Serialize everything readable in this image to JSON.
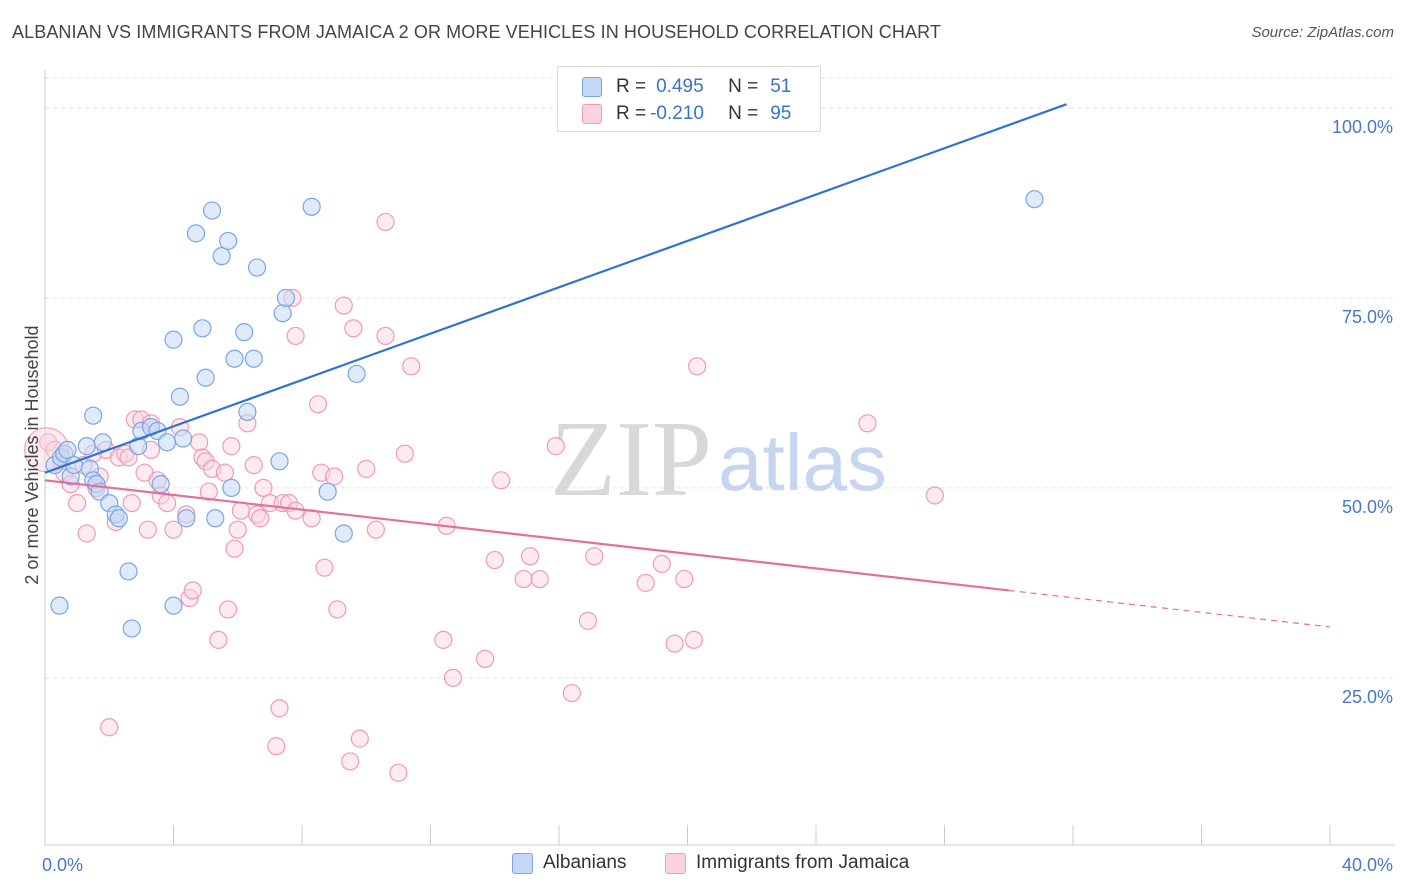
{
  "title": "ALBANIAN VS IMMIGRANTS FROM JAMAICA 2 OR MORE VEHICLES IN HOUSEHOLD CORRELATION CHART",
  "source": "Source: ZipAtlas.com",
  "watermark": {
    "zip": "ZIP",
    "atlas": "atlas"
  },
  "legend": {
    "r_label": "R =",
    "n_label": "N =",
    "rows": [
      {
        "series": "Albanians",
        "r": "0.495",
        "n": "51",
        "color": "#7aa6e8",
        "fill": "#c4d8f5"
      },
      {
        "series": "Immigrants from Jamaica",
        "r": "-0.210",
        "n": "95",
        "color": "#f09ab5",
        "fill": "#fbd3e0"
      }
    ]
  },
  "chart_data": {
    "type": "scatter",
    "title": "ALBANIAN VS IMMIGRANTS FROM JAMAICA 2 OR MORE VEHICLES IN HOUSEHOLD CORRELATION CHART",
    "xlabel": "",
    "ylabel": "2 or more Vehicles in Household",
    "xlim": [
      0,
      40
    ],
    "ylim": [
      3,
      105
    ],
    "x_tick_labels": [
      "0.0%",
      "40.0%"
    ],
    "y_ticks": [
      25,
      50,
      75,
      100
    ],
    "y_tick_labels": [
      "25.0%",
      "50.0%",
      "75.0%",
      "100.0%"
    ],
    "grid": true,
    "legend_position": "top-center",
    "series": [
      {
        "name": "Albanians",
        "color": "#7aa6e8",
        "trend": {
          "x": [
            0.0,
            31.8
          ],
          "y": [
            52.0,
            100.5
          ],
          "dashed_to": null
        },
        "points": [
          [
            0.3,
            53.0
          ],
          [
            0.5,
            54.0
          ],
          [
            0.6,
            54.5
          ],
          [
            0.7,
            55.0
          ],
          [
            0.8,
            51.5
          ],
          [
            0.9,
            53.0
          ],
          [
            1.3,
            55.5
          ],
          [
            1.4,
            52.5
          ],
          [
            1.5,
            51.0
          ],
          [
            1.6,
            50.5
          ],
          [
            1.7,
            49.5
          ],
          [
            1.8,
            56.0
          ],
          [
            1.5,
            59.5
          ],
          [
            2.0,
            48.0
          ],
          [
            2.2,
            46.5
          ],
          [
            2.3,
            46.0
          ],
          [
            2.6,
            39.0
          ],
          [
            2.7,
            31.5
          ],
          [
            2.9,
            55.5
          ],
          [
            3.0,
            57.5
          ],
          [
            3.3,
            58.0
          ],
          [
            3.5,
            57.5
          ],
          [
            3.8,
            56.0
          ],
          [
            3.6,
            50.5
          ],
          [
            4.0,
            69.5
          ],
          [
            4.2,
            62.0
          ],
          [
            4.3,
            56.5
          ],
          [
            4.4,
            46.0
          ],
          [
            4.7,
            83.5
          ],
          [
            4.9,
            71.0
          ],
          [
            5.0,
            64.5
          ],
          [
            5.2,
            86.5
          ],
          [
            5.3,
            46.0
          ],
          [
            5.5,
            80.5
          ],
          [
            5.7,
            82.5
          ],
          [
            5.9,
            67.0
          ],
          [
            6.2,
            70.5
          ],
          [
            6.3,
            60.0
          ],
          [
            6.5,
            67.0
          ],
          [
            6.6,
            79.0
          ],
          [
            7.3,
            53.5
          ],
          [
            7.4,
            73.0
          ],
          [
            7.5,
            75.0
          ],
          [
            8.3,
            87.0
          ],
          [
            8.8,
            49.5
          ],
          [
            9.3,
            44.0
          ],
          [
            9.7,
            65.0
          ],
          [
            30.8,
            88.0
          ],
          [
            0.45,
            34.5
          ],
          [
            4.0,
            34.5
          ],
          [
            5.8,
            50.0
          ]
        ]
      },
      {
        "name": "Immigrants from Jamaica",
        "color": "#f09ab5",
        "trend": {
          "x": [
            0.0,
            30.0
          ],
          "y": [
            51.0,
            36.5
          ],
          "dashed_to": [
            40.0,
            31.7
          ]
        },
        "points": [
          [
            0.1,
            56.0
          ],
          [
            0.3,
            55.0
          ],
          [
            0.5,
            53.5
          ],
          [
            0.6,
            52.0
          ],
          [
            0.8,
            50.5
          ],
          [
            1.0,
            48.0
          ],
          [
            1.2,
            53.0
          ],
          [
            1.3,
            44.0
          ],
          [
            1.5,
            54.5
          ],
          [
            1.6,
            50.0
          ],
          [
            1.7,
            51.5
          ],
          [
            1.9,
            55.0
          ],
          [
            2.2,
            45.5
          ],
          [
            2.3,
            54.0
          ],
          [
            2.5,
            54.5
          ],
          [
            2.6,
            54.0
          ],
          [
            2.7,
            48.0
          ],
          [
            2.8,
            59.0
          ],
          [
            3.0,
            59.0
          ],
          [
            3.1,
            52.0
          ],
          [
            3.2,
            44.5
          ],
          [
            3.3,
            58.5
          ],
          [
            3.5,
            51.0
          ],
          [
            3.6,
            49.0
          ],
          [
            3.8,
            48.0
          ],
          [
            4.0,
            44.5
          ],
          [
            4.2,
            58.0
          ],
          [
            4.4,
            46.5
          ],
          [
            4.5,
            35.5
          ],
          [
            4.6,
            36.5
          ],
          [
            4.8,
            56.0
          ],
          [
            4.9,
            54.0
          ],
          [
            5.0,
            53.5
          ],
          [
            5.1,
            49.5
          ],
          [
            5.2,
            52.5
          ],
          [
            5.4,
            30.0
          ],
          [
            5.6,
            52.0
          ],
          [
            5.7,
            34.0
          ],
          [
            5.8,
            55.5
          ],
          [
            5.9,
            42.0
          ],
          [
            6.0,
            44.5
          ],
          [
            6.1,
            47.0
          ],
          [
            6.3,
            58.5
          ],
          [
            6.5,
            53.0
          ],
          [
            6.6,
            46.5
          ],
          [
            6.8,
            50.0
          ],
          [
            7.0,
            48.0
          ],
          [
            7.2,
            16.0
          ],
          [
            7.3,
            21.0
          ],
          [
            7.4,
            48.0
          ],
          [
            7.6,
            48.0
          ],
          [
            7.7,
            75.0
          ],
          [
            7.8,
            47.0
          ],
          [
            7.8,
            70.0
          ],
          [
            8.3,
            46.0
          ],
          [
            8.5,
            61.0
          ],
          [
            8.6,
            52.0
          ],
          [
            8.7,
            39.5
          ],
          [
            9.1,
            34.0
          ],
          [
            9.3,
            74.0
          ],
          [
            9.5,
            14.0
          ],
          [
            9.6,
            71.0
          ],
          [
            9.8,
            17.0
          ],
          [
            10.0,
            52.5
          ],
          [
            10.3,
            44.5
          ],
          [
            10.6,
            85.0
          ],
          [
            10.6,
            70.0
          ],
          [
            11.0,
            12.5
          ],
          [
            11.2,
            54.5
          ],
          [
            11.4,
            66.0
          ],
          [
            12.4,
            30.0
          ],
          [
            12.5,
            45.0
          ],
          [
            12.7,
            25.0
          ],
          [
            13.7,
            27.5
          ],
          [
            14.0,
            40.5
          ],
          [
            14.2,
            51.0
          ],
          [
            14.9,
            38.0
          ],
          [
            15.1,
            41.0
          ],
          [
            15.4,
            38.0
          ],
          [
            15.9,
            55.5
          ],
          [
            16.4,
            23.0
          ],
          [
            16.9,
            32.5
          ],
          [
            17.1,
            41.0
          ],
          [
            18.7,
            37.5
          ],
          [
            19.2,
            40.0
          ],
          [
            19.6,
            29.5
          ],
          [
            19.9,
            38.0
          ],
          [
            20.2,
            30.0
          ],
          [
            20.3,
            66.0
          ],
          [
            25.6,
            58.5
          ],
          [
            27.7,
            49.0
          ],
          [
            2.0,
            18.5
          ],
          [
            6.7,
            46.0
          ],
          [
            9.0,
            51.5
          ],
          [
            3.3,
            55.0
          ]
        ]
      }
    ]
  }
}
